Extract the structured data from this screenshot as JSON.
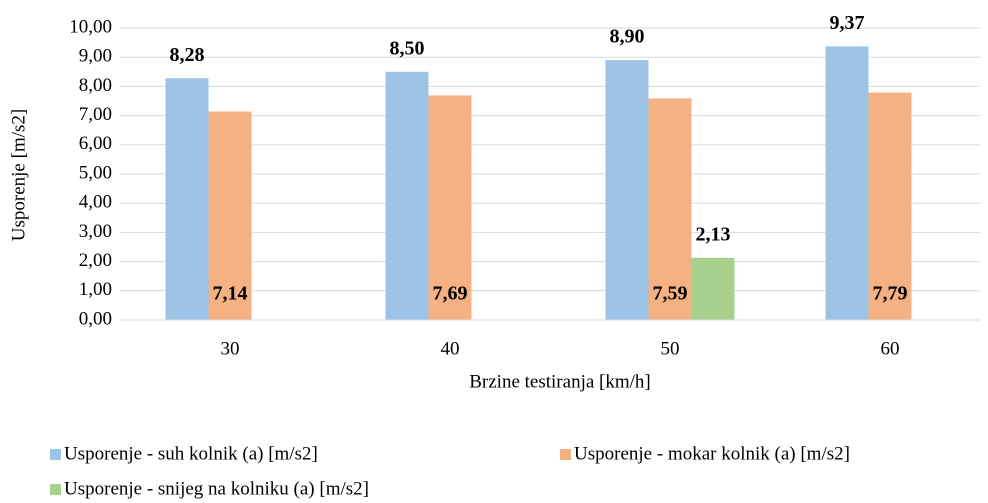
{
  "chart_data": {
    "type": "bar",
    "categories": [
      "30",
      "40",
      "50",
      "60"
    ],
    "x_label": "Brzine testiranja [km/h]",
    "y_label": "Usporenje [m/s2]",
    "ylim": [
      0,
      10
    ],
    "yticks": [
      {
        "value": 0,
        "label": "0,00"
      },
      {
        "value": 1,
        "label": "1,00"
      },
      {
        "value": 2,
        "label": "2,00"
      },
      {
        "value": 3,
        "label": "3,00"
      },
      {
        "value": 4,
        "label": "4,00"
      },
      {
        "value": 5,
        "label": "5,00"
      },
      {
        "value": 6,
        "label": "6,00"
      },
      {
        "value": 7,
        "label": "7,00"
      },
      {
        "value": 8,
        "label": "8,00"
      },
      {
        "value": 9,
        "label": "9,00"
      },
      {
        "value": 10,
        "label": "10,00"
      }
    ],
    "grid": true,
    "legend": "bottom",
    "series": [
      {
        "name": "Usporenje - suh kolnik (a) [m/s2]",
        "color": "#9dc3e6",
        "values": [
          8.28,
          8.5,
          8.9,
          9.37
        ],
        "value_labels": [
          "8,28",
          "8,50",
          "8,90",
          "9,37"
        ]
      },
      {
        "name": "Usporenje - mokar kolnik (a) [m/s2]",
        "color": "#f4b183",
        "values": [
          7.14,
          7.69,
          7.59,
          7.79
        ],
        "value_labels": [
          "7,14",
          "7,69",
          "7,59",
          "7,79"
        ]
      },
      {
        "name": "Usporenje - snijeg na kolniku (a) [m/s2]",
        "color": "#a9d18e",
        "values": [
          null,
          null,
          2.13,
          null
        ],
        "value_labels": [
          null,
          null,
          "2,13",
          null
        ]
      }
    ]
  }
}
